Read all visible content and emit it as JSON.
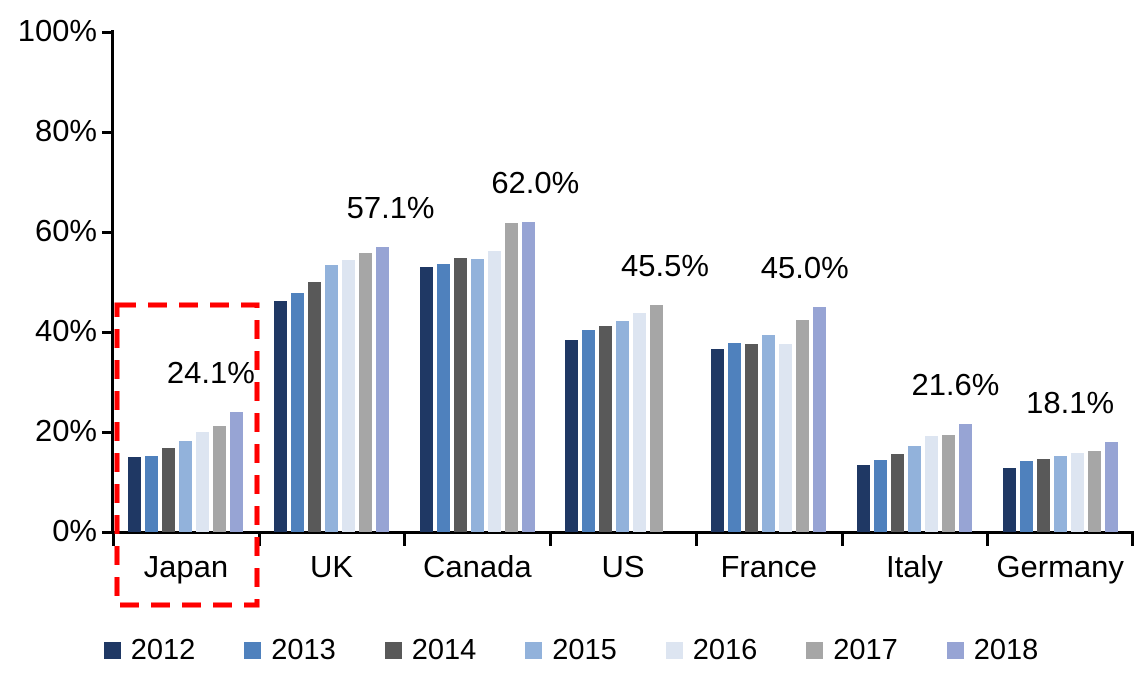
{
  "chart_data": {
    "type": "bar",
    "title": "",
    "categories": [
      "Japan",
      "UK",
      "Canada",
      "US",
      "France",
      "Italy",
      "Germany"
    ],
    "series": [
      {
        "name": "2012",
        "color": "#1F3864",
        "values": [
          15.1,
          46.3,
          53.1,
          38.4,
          36.7,
          13.5,
          12.9
        ]
      },
      {
        "name": "2013",
        "color": "#4F81BD",
        "values": [
          15.3,
          47.9,
          53.6,
          40.4,
          37.9,
          14.5,
          14.3
        ]
      },
      {
        "name": "2014",
        "color": "#595959",
        "values": [
          16.9,
          50.1,
          54.9,
          41.2,
          37.7,
          15.7,
          14.7
        ]
      },
      {
        "name": "2015",
        "color": "#92B2DB",
        "values": [
          18.2,
          53.4,
          54.7,
          42.3,
          39.4,
          17.2,
          15.2
        ]
      },
      {
        "name": "2016",
        "color": "#DDE5F1",
        "values": [
          20.0,
          54.5,
          56.3,
          43.9,
          37.6,
          19.3,
          15.8
        ]
      },
      {
        "name": "2017",
        "color": "#A6A6A6",
        "values": [
          21.3,
          55.8,
          61.9,
          45.5,
          42.5,
          19.5,
          16.3
        ]
      },
      {
        "name": "2018",
        "color": "#97A4D4",
        "values": [
          24.1,
          57.1,
          62.0,
          null,
          45.0,
          21.6,
          18.1
        ]
      }
    ],
    "value_labels": [
      "24.1%",
      "57.1%",
      "62.0%",
      "45.5%",
      "45.0%",
      "21.6%",
      "18.1%"
    ],
    "y_axis": {
      "min": 0,
      "max": 100,
      "tick_step": 20,
      "ticks": [
        "0%",
        "20%",
        "40%",
        "60%",
        "80%",
        "100%"
      ]
    },
    "legend": {
      "position": "bottom",
      "entries": [
        "2012",
        "2013",
        "2014",
        "2015",
        "2016",
        "2017",
        "2018"
      ]
    },
    "grid": false,
    "highlight": {
      "category": "Japan",
      "style": "dashed-box",
      "color": "#FF0000"
    }
  }
}
